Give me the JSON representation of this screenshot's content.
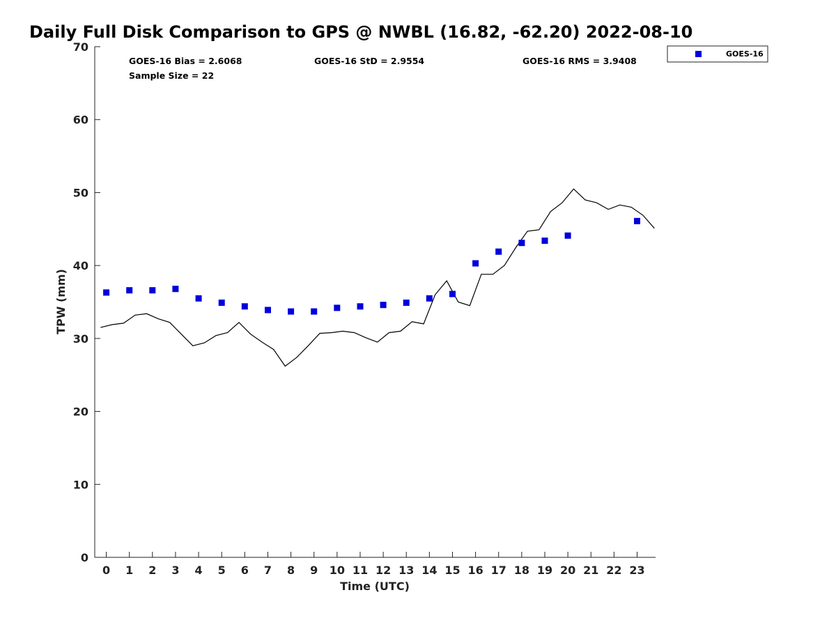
{
  "chart_data": {
    "type": "scatter",
    "title": "Daily Full Disk Comparison to GPS @ NWBL (16.82, -62.20) 2022-08-10",
    "xlabel": "Time (UTC)",
    "ylabel": "TPW (mm)",
    "xlim": [
      -0.5,
      23.8
    ],
    "ylim": [
      0,
      70
    ],
    "x_ticks": [
      "0",
      "1",
      "2",
      "3",
      "4",
      "5",
      "6",
      "7",
      "8",
      "9",
      "10",
      "11",
      "12",
      "13",
      "14",
      "15",
      "16",
      "17",
      "18",
      "19",
      "20",
      "21",
      "22",
      "23"
    ],
    "y_ticks": [
      "0",
      "10",
      "20",
      "30",
      "40",
      "50",
      "60",
      "70"
    ],
    "grid": false,
    "legend_position": "top-right",
    "stats": {
      "bias": "GOES-16 Bias = 2.6068",
      "std": "GOES-16 StD = 2.9554",
      "rms": "GOES-16 RMS = 3.9408",
      "sample": "Sample Size = 22"
    },
    "series": [
      {
        "name": "GOES-16",
        "kind": "points",
        "color": "#0000dd",
        "x": [
          0,
          1,
          2,
          3,
          4,
          5,
          6,
          7,
          8,
          9,
          10,
          11,
          12,
          13,
          14,
          15,
          16,
          17,
          18,
          19,
          20,
          23
        ],
        "y": [
          36.3,
          36.6,
          36.6,
          36.8,
          35.5,
          34.9,
          34.4,
          33.9,
          33.7,
          33.7,
          34.2,
          34.4,
          34.6,
          34.9,
          35.5,
          36.1,
          40.3,
          41.9,
          43.1,
          43.4,
          44.1,
          46.1
        ]
      },
      {
        "kind": "line",
        "color": "#000000",
        "x": [
          -0.25,
          0.25,
          0.75,
          1.25,
          1.75,
          2.25,
          2.75,
          3.25,
          3.75,
          4.25,
          4.75,
          5.25,
          5.75,
          6.25,
          6.75,
          7.25,
          7.75,
          8.25,
          8.75,
          9.25,
          9.75,
          10.25,
          10.75,
          11.25,
          11.75,
          12.25,
          12.75,
          13.25,
          13.75,
          14.25,
          14.75,
          15.25,
          15.75,
          16.25,
          16.75,
          17.25,
          17.75,
          18.25,
          18.75,
          19.25,
          19.75,
          20.25,
          20.75,
          21.25,
          21.75,
          22.25,
          22.75,
          23.25,
          23.75
        ],
        "y": [
          31.5,
          31.9,
          32.1,
          33.2,
          33.4,
          32.7,
          32.2,
          30.6,
          29.0,
          29.4,
          30.4,
          30.8,
          32.2,
          30.6,
          29.5,
          28.5,
          26.2,
          27.4,
          29.0,
          30.7,
          30.8,
          31.0,
          30.8,
          30.1,
          29.5,
          30.8,
          31.0,
          32.3,
          32.0,
          36.0,
          37.9,
          35.0,
          34.5,
          38.8,
          38.8,
          40.0,
          42.5,
          44.7,
          44.9,
          47.4,
          48.6,
          50.5,
          49.0,
          48.6,
          47.7,
          48.3,
          48.0,
          46.9,
          45.1
        ]
      }
    ]
  }
}
